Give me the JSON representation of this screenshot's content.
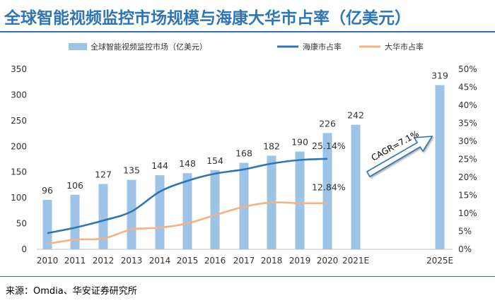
{
  "page_title": "全球智能视频监控市场规模与海康大华市占率（亿美元）",
  "source_note": "来源：Omdia、华安证券研究所",
  "colors": {
    "bar": "#9dc3e6",
    "hikvision": "#2e75b6",
    "dahua": "#f4b183",
    "title": "#2e75b6",
    "arrow": "#2e75b6"
  },
  "chart_data": {
    "type": "bar",
    "categories": [
      "2010",
      "2011",
      "2012",
      "2013",
      "2014",
      "2015",
      "2016",
      "2017",
      "2018",
      "2019",
      "2020",
      "2021E",
      "2025E"
    ],
    "series": [
      {
        "name": "全球智能视频监控市场（亿美元）",
        "type": "bar",
        "axis": "left",
        "values": [
          96,
          106,
          127,
          135,
          144,
          148,
          154,
          168,
          182,
          190,
          226,
          242,
          319
        ],
        "labels": [
          "96",
          "106",
          "127",
          "135",
          "144",
          "148",
          "154",
          "168",
          "182",
          "190",
          "226",
          "242",
          "319"
        ]
      },
      {
        "name": "海康市占率",
        "type": "line",
        "axis": "right",
        "values": [
          0.045,
          0.06,
          0.08,
          0.105,
          0.16,
          0.19,
          0.21,
          0.222,
          0.238,
          0.248,
          0.2514,
          null,
          null
        ]
      },
      {
        "name": "大华市占率",
        "type": "line",
        "axis": "right",
        "values": [
          0.015,
          0.027,
          0.03,
          0.055,
          0.06,
          0.072,
          0.095,
          0.118,
          0.13,
          0.128,
          0.1284,
          null,
          null
        ]
      }
    ],
    "axes": {
      "left": {
        "min": 0,
        "max": 350,
        "step": 50
      },
      "right": {
        "min": 0,
        "max": 0.5,
        "step": 0.05,
        "format": "percent"
      }
    },
    "annotations": [
      {
        "text": "25.14%",
        "series": "海康市占率",
        "category": "2020"
      },
      {
        "text": "12.84%",
        "series": "大华市占率",
        "category": "2020"
      },
      {
        "text": "CAGR=7.1%",
        "from": "2021E",
        "to": "2025E"
      }
    ],
    "legend_position": "top",
    "grid": false
  }
}
